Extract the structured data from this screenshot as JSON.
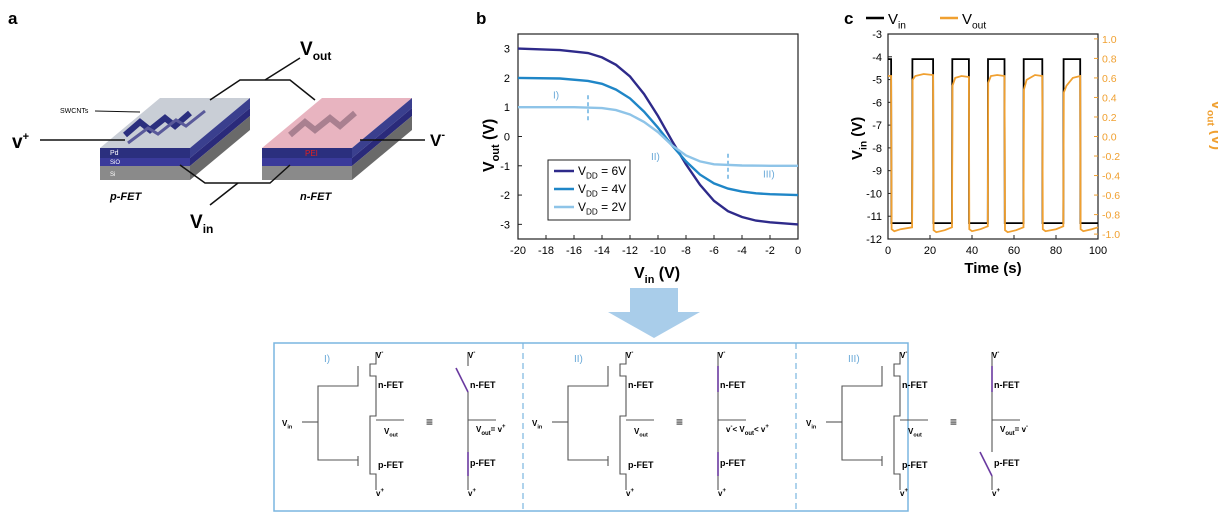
{
  "panels": {
    "a": {
      "letter": "a",
      "layers": {
        "top": "SWCNTs",
        "pd": "Pd",
        "sio2": "SiO",
        "si": "Si",
        "pei": "PEI"
      },
      "labels": {
        "vout": "V",
        "vout_sub": "out",
        "vin": "V",
        "vin_sub": "in",
        "vplus": "v",
        "vplus_sup": "+",
        "vminus": "V",
        "vminus_sup": "-",
        "pfet": "p-FET",
        "nfet": "n-FET"
      },
      "colors": {
        "channel": "#2b2f7e",
        "pfet_top": "#c9ced6",
        "nfet_top": "#e8b4c0",
        "substrate": "#7a7a7a"
      }
    },
    "b": {
      "letter": "b"
    },
    "c": {
      "letter": "c"
    },
    "d": {
      "regions": [
        {
          "roman": "I)",
          "top": "n-FET",
          "bottom": "p-FET",
          "vdd": "V",
          "vdd_sup": "-",
          "vss": "v",
          "vss_sup": "+",
          "vin": "V",
          "vin_sub": "in",
          "vout": "V",
          "vout_sub": "out",
          "equiv": "≡",
          "result": "V",
          "result_sub": "out",
          "result_tail": "= v",
          "result_sup": "+"
        },
        {
          "roman": "II)",
          "top": "n-FET",
          "bottom": "p-FET",
          "vdd": "V",
          "vdd_sup": "-",
          "vss": "v",
          "vss_sup": "+",
          "vin": "V",
          "vin_sub": "in",
          "vout": "V",
          "vout_sub": "out",
          "equiv": "≡",
          "result": "v",
          "result_sub": "",
          "result_tail": "< V",
          "result_sup": "-",
          "result_mid_sub": "out",
          "result_end": "< v",
          "result_end_sup": "+"
        },
        {
          "roman": "III)",
          "top": "n-FET",
          "bottom": "p-FET",
          "vdd": "V",
          "vdd_sup": "-",
          "vss": "v",
          "vss_sup": "+",
          "vin": "V",
          "vin_sub": "in",
          "vout": "V",
          "vout_sub": "out",
          "equiv": "≡",
          "result": "V",
          "result_sub": "out",
          "result_tail": "= v",
          "result_sup": "-"
        }
      ]
    }
  },
  "chart_data": [
    {
      "type": "line",
      "xlabel": "V",
      "xlabel_sub": "in",
      "xlabel_unit": " (V)",
      "ylabel": "V",
      "ylabel_sub": "out",
      "ylabel_unit": " (V)",
      "xlim": [
        -20,
        0
      ],
      "ylim": [
        -3.5,
        3.5
      ],
      "xticks": [
        -20,
        -18,
        -16,
        -14,
        -12,
        -10,
        -8,
        -6,
        -4,
        -2,
        0
      ],
      "yticks": [
        -3,
        -2,
        -1,
        0,
        1,
        2,
        3
      ],
      "legend_position": "bottom-left",
      "series": [
        {
          "name": "V",
          "name_sub": "DD",
          "name_tail": " = 6V",
          "color": "#2e2a8a",
          "x": [
            -20,
            -17,
            -15,
            -14,
            -13,
            -12,
            -11,
            -10,
            -9,
            -8,
            -7,
            -6,
            -5,
            -4,
            -3,
            -2,
            0
          ],
          "y": [
            3.0,
            2.95,
            2.85,
            2.7,
            2.45,
            2.05,
            1.45,
            0.7,
            -0.15,
            -0.95,
            -1.65,
            -2.2,
            -2.55,
            -2.75,
            -2.87,
            -2.93,
            -3.0
          ]
        },
        {
          "name": "V",
          "name_sub": "DD",
          "name_tail": " = 4V",
          "color": "#1f86c7",
          "x": [
            -20,
            -17,
            -15,
            -14,
            -13,
            -12,
            -11,
            -10,
            -9,
            -8,
            -7,
            -6,
            -5,
            -4,
            -3,
            -2,
            0
          ],
          "y": [
            2.0,
            1.98,
            1.9,
            1.8,
            1.6,
            1.3,
            0.85,
            0.3,
            -0.3,
            -0.85,
            -1.3,
            -1.6,
            -1.78,
            -1.88,
            -1.94,
            -1.97,
            -2.0
          ]
        },
        {
          "name": "V",
          "name_sub": "DD",
          "name_tail": " = 2V",
          "color": "#8ec4e8",
          "x": [
            -20,
            -16,
            -14,
            -13,
            -12,
            -11,
            -10,
            -9,
            -8,
            -7,
            -6,
            -4,
            -2,
            0
          ],
          "y": [
            1.0,
            1.0,
            0.97,
            0.9,
            0.75,
            0.5,
            0.15,
            -0.3,
            -0.65,
            -0.85,
            -0.95,
            -0.99,
            -1.0,
            -1.0
          ]
        }
      ],
      "annotations": [
        {
          "text": "I)",
          "x": -17.5,
          "y": 1.3
        },
        {
          "text": "II)",
          "x": -10.5,
          "y": -0.8
        },
        {
          "text": "III)",
          "x": -2.5,
          "y": -1.4
        }
      ],
      "guides": [
        -15,
        -5
      ]
    },
    {
      "type": "line",
      "xlabel": "Time (s)",
      "ylabel": "V",
      "ylabel_sub": "in",
      "ylabel_unit": " (V)",
      "y2label": "V",
      "y2label_sub": "out",
      "y2label_unit": " (V)",
      "xlim": [
        0,
        100
      ],
      "ylim": [
        -12,
        -3
      ],
      "y2lim": [
        -1.05,
        1.05
      ],
      "xticks": [
        0,
        20,
        40,
        60,
        80,
        100
      ],
      "yticks": [
        -12,
        -11,
        -10,
        -9,
        -8,
        -7,
        -6,
        -5,
        -4,
        -3
      ],
      "y2ticks": [
        -1.0,
        -0.8,
        -0.6,
        -0.4,
        -0.2,
        0.0,
        0.2,
        0.4,
        0.6,
        0.8,
        1.0
      ],
      "legend_position": "top-left",
      "series": [
        {
          "name": "V",
          "name_sub": "in",
          "color": "#000000",
          "axis": "left",
          "x": [
            0,
            1.5,
            1.6,
            11.5,
            11.6,
            21.5,
            21.6,
            30.5,
            30.6,
            38.5,
            38.6,
            47.5,
            47.6,
            55.5,
            55.6,
            64.5,
            64.6,
            73.5,
            73.6,
            83.5,
            83.6,
            91.5,
            91.6,
            100
          ],
          "y": [
            -4.1,
            -4.1,
            -11.3,
            -11.3,
            -4.1,
            -4.1,
            -11.3,
            -11.3,
            -4.1,
            -4.1,
            -11.3,
            -11.3,
            -4.1,
            -4.1,
            -11.3,
            -11.3,
            -4.1,
            -4.1,
            -11.3,
            -11.3,
            -4.1,
            -4.1,
            -11.3,
            -11.3
          ]
        },
        {
          "name": "V",
          "name_sub": "out",
          "color": "#f0a030",
          "axis": "right",
          "x": [
            0,
            1.5,
            1.7,
            3,
            6,
            11.5,
            11.7,
            13,
            17,
            21.5,
            21.7,
            23,
            27,
            30.5,
            30.7,
            32,
            35,
            38.5,
            38.7,
            40,
            44,
            47.5,
            47.7,
            49,
            52,
            55.5,
            55.7,
            57,
            61,
            64.5,
            64.7,
            66,
            70,
            73.5,
            73.7,
            75,
            80,
            83.5,
            83.7,
            85,
            88,
            91.5,
            91.7,
            93,
            97,
            100
          ],
          "y": [
            0.62,
            0.62,
            -0.95,
            -0.97,
            -0.95,
            -0.93,
            0.58,
            0.62,
            0.64,
            0.63,
            -0.96,
            -0.98,
            -0.96,
            -0.93,
            0.52,
            0.6,
            0.62,
            0.61,
            -0.95,
            -0.97,
            -0.95,
            -0.92,
            0.55,
            0.62,
            0.63,
            0.62,
            -0.96,
            -0.98,
            -0.96,
            -0.93,
            0.48,
            0.58,
            0.63,
            0.62,
            -0.95,
            -0.97,
            -0.95,
            -0.92,
            0.45,
            0.52,
            0.6,
            0.62,
            -0.95,
            -0.97,
            -0.95,
            -0.93
          ]
        }
      ]
    }
  ]
}
